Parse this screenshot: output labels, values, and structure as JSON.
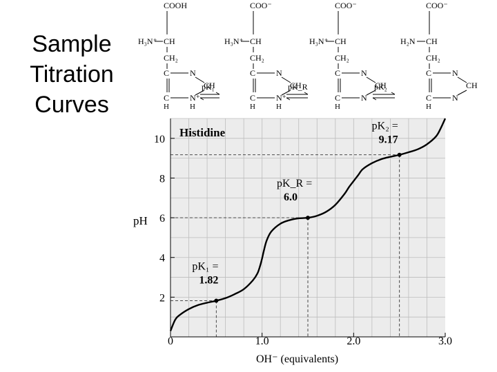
{
  "slide": {
    "title_lines": [
      "Sample",
      "Titration",
      "Curves"
    ]
  },
  "structures": {
    "arrow_labels": [
      "pK₁",
      "pK_R",
      "pK₂"
    ],
    "species": [
      {
        "top": "COOH",
        "amine": "H₃N⁺",
        "alpha": "CH",
        "beta": "CH₂",
        "ring": [
          "C",
          "N",
          "CH",
          "C",
          "N⁺",
          "H",
          "H"
        ]
      },
      {
        "top": "COO⁻",
        "amine": "H₃N⁺",
        "alpha": "CH",
        "beta": "CH₂",
        "ring": [
          "C",
          "N",
          "CH",
          "C",
          "N⁺",
          "H",
          "H"
        ]
      },
      {
        "top": "COO⁻",
        "amine": "H₃N⁺",
        "alpha": "CH",
        "beta": "CH₂",
        "ring": [
          "C",
          "N",
          "CH",
          "C",
          "N",
          "H"
        ]
      },
      {
        "top": "COO⁻",
        "amine": "H₂N",
        "alpha": "CH",
        "beta": "CH₂",
        "ring": [
          "C",
          "N",
          "CH",
          "C",
          "N",
          "H"
        ]
      }
    ]
  },
  "chart_data": {
    "type": "line",
    "title": "Histidine",
    "xlabel": "OH⁻ (equivalents)",
    "ylabel": "pH",
    "xlim": [
      0,
      3.0
    ],
    "ylim": [
      0,
      11
    ],
    "x_ticks": [
      "0",
      "1.0",
      "2.0",
      "3.0"
    ],
    "y_ticks": [
      "2",
      "4",
      "6",
      "8",
      "10"
    ],
    "grid": true,
    "series": [
      {
        "x": [
          0.0,
          0.05,
          0.1,
          0.2,
          0.3,
          0.4,
          0.5,
          0.6,
          0.7,
          0.8,
          0.9,
          0.95,
          0.98,
          1.0,
          1.02,
          1.05,
          1.1,
          1.2,
          1.3,
          1.4,
          1.5,
          1.6,
          1.7,
          1.8,
          1.9,
          1.95,
          2.0,
          2.05,
          2.1,
          2.2,
          2.3,
          2.4,
          2.5,
          2.6,
          2.7,
          2.8,
          2.9,
          2.95,
          3.0
        ],
        "y": [
          0.3,
          0.85,
          1.1,
          1.4,
          1.6,
          1.72,
          1.82,
          1.95,
          2.15,
          2.4,
          2.85,
          3.2,
          3.6,
          3.95,
          4.35,
          4.85,
          5.3,
          5.7,
          5.88,
          5.97,
          6.0,
          6.1,
          6.3,
          6.65,
          7.2,
          7.55,
          7.85,
          8.15,
          8.45,
          8.75,
          8.95,
          9.07,
          9.17,
          9.3,
          9.45,
          9.7,
          10.1,
          10.5,
          11.0
        ]
      }
    ],
    "points": [
      {
        "x": 0.5,
        "y": 1.82,
        "label": [
          "pK₁ =",
          "1.82"
        ]
      },
      {
        "x": 1.5,
        "y": 6.0,
        "label": [
          "pK_R =",
          "6.0"
        ]
      },
      {
        "x": 2.5,
        "y": 9.17,
        "label": [
          "pK₂ =",
          "9.17"
        ]
      }
    ]
  }
}
